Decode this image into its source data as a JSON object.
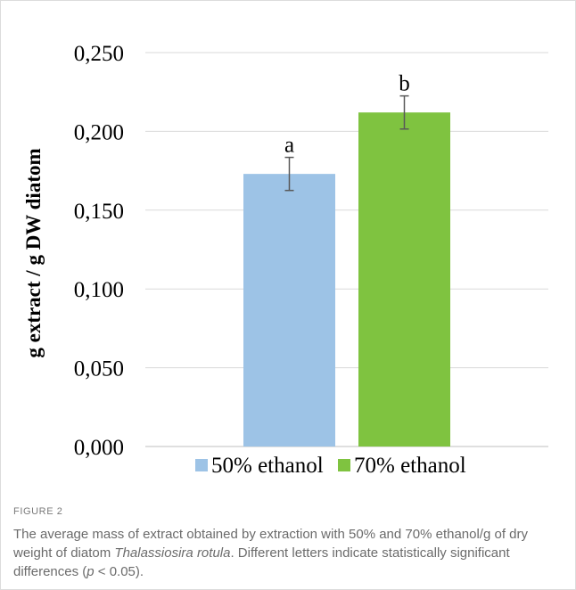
{
  "chart_data": {
    "type": "bar",
    "categories": [
      "50% ethanol",
      "70% ethanol"
    ],
    "values": [
      0.173,
      0.212
    ],
    "error": [
      0.0105,
      0.0105
    ],
    "significance_letters": [
      "a",
      "b"
    ],
    "colors": [
      "#9dc3e6",
      "#7fc340"
    ],
    "ylabel": "g extract / g DW diatom",
    "ylim": [
      0,
      0.25
    ],
    "yticks": [
      "0,000",
      "0,050",
      "0,100",
      "0,150",
      "0,200",
      "0,250"
    ],
    "grid": true,
    "legend_position": "bottom"
  },
  "caption": {
    "label": "FIGURE 2",
    "text_before": "The average mass of extract obtained by extraction with 50% and 70% ethanol/g of dry weight of diatom ",
    "species": "Thalassiosira rotula",
    "text_middle": ". Different letters indicate statistically significant differences (",
    "p_symbol": "p",
    "text_after": " < 0.05)."
  }
}
